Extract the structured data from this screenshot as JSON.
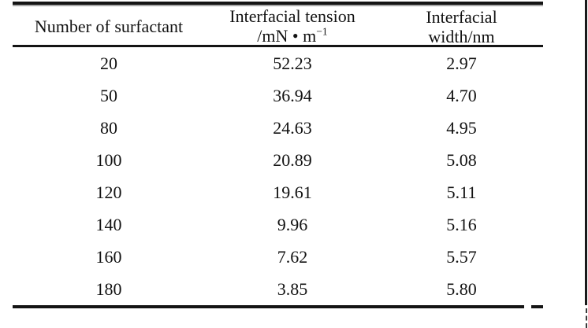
{
  "table": {
    "headers": {
      "col1": "Number of surfactant",
      "col2_line1": "Interfacial tension",
      "col2_unit_base": "/mN • m",
      "col2_unit_sup": "−1",
      "col3_line1": "Interfacial",
      "col3_line2": "width/nm"
    },
    "rows": [
      {
        "n": "20",
        "tension": "52.23",
        "width": "2.97"
      },
      {
        "n": "50",
        "tension": "36.94",
        "width": "4.70"
      },
      {
        "n": "80",
        "tension": "24.63",
        "width": "4.95"
      },
      {
        "n": "100",
        "tension": "20.89",
        "width": "5.08"
      },
      {
        "n": "120",
        "tension": "19.61",
        "width": "5.11"
      },
      {
        "n": "140",
        "tension": "9.96",
        "width": "5.16"
      },
      {
        "n": "160",
        "tension": "7.62",
        "width": "5.57"
      },
      {
        "n": "180",
        "tension": "3.85",
        "width": "5.80"
      }
    ]
  },
  "colors": {
    "background": "#ffffff",
    "text": "#121212",
    "rule": "#141414"
  },
  "chart_data": {
    "type": "table",
    "title": "",
    "columns": [
      "Number of surfactant",
      "Interfacial tension /mN·m⁻¹",
      "Interfacial width/nm"
    ],
    "x": [
      20,
      50,
      80,
      100,
      120,
      140,
      160,
      180
    ],
    "series": [
      {
        "name": "Interfacial tension (mN/m)",
        "values": [
          52.23,
          36.94,
          24.63,
          20.89,
          19.61,
          9.96,
          7.62,
          3.85
        ]
      },
      {
        "name": "Interfacial width (nm)",
        "values": [
          2.97,
          4.7,
          4.95,
          5.08,
          5.11,
          5.16,
          5.57,
          5.8
        ]
      }
    ]
  }
}
